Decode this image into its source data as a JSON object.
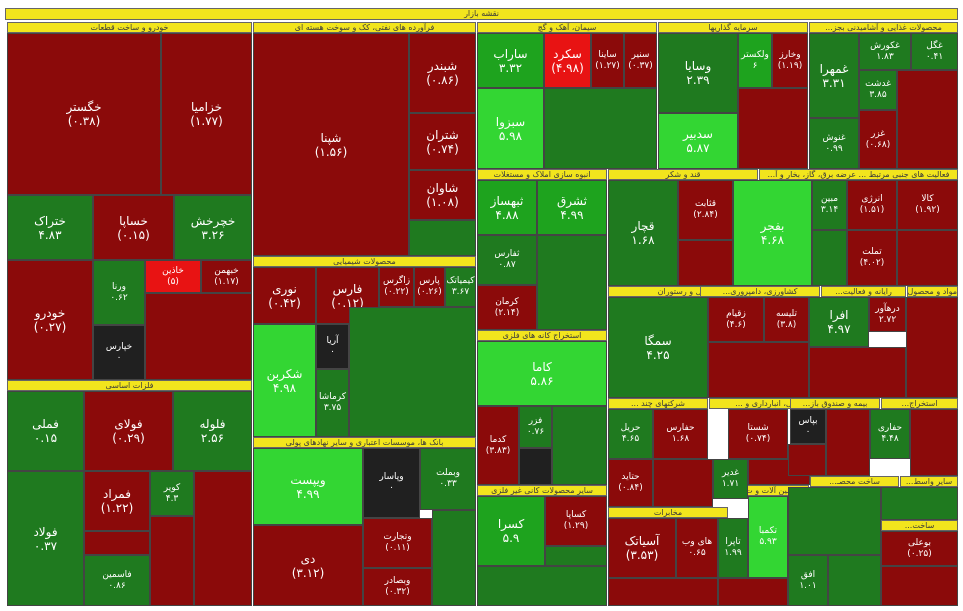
{
  "title": "نقشه بازار",
  "colors": {
    "dark_red": "#8b0a0a",
    "dark_green": "#1f7a1f",
    "green": "#1ea31e",
    "light_green": "#33d633",
    "red": "#e81313",
    "black": "#202020",
    "header": "#f2e51d"
  },
  "sectors": {
    "auto": "خودرو و ساخت قطعات",
    "refinery": "فرآورده های نفتی، کک و سوخت هسته ای",
    "cement": "سیمان، آهک و گچ",
    "invest": "سرمایه گذاریها",
    "food": "محصولات غذایی و آشامیدنی بجز...",
    "chemical": "محصولات شیمیایی",
    "realestate": "انبوه سازی املاک و مستغلات",
    "sugar": "قند و شکر",
    "support": "فعالیت های جنبی مرتبط ... عرضه برق، گاز، بخار و آ...",
    "metals": "فلزات اساسی",
    "mining": "استخراج کانه های فلزی",
    "hotel": "هتل و رستوران",
    "agri": "کشاورزی، دامپروری...",
    "computer": "رایانه و فعالیت...",
    "mavad": "مواد و محصول...",
    "banks": "بانک ها، موسسات اعتباری و سایر نهادهای پولی",
    "nonmetal": "سایر محصولات کانی غیر فلزی",
    "multi": "شرکتهای چند ...",
    "transport": "حمل و نقل، انبارداری و ...",
    "insurance": "بیمه و صندوق باز...",
    "mining2": "استخراج...",
    "telecom": "مخابرات",
    "machinery": "ماشین آلات و ت...",
    "other_mining": "سایر واسط...",
    "woodpaper": "ساخت محصـ...",
    "textile": "ساخت..."
  },
  "tiles": [
    {
      "name": "خگستر",
      "value": "(۰.۳۸)"
    },
    {
      "name": "خزامیا",
      "value": "(۱.۷۷)"
    },
    {
      "name": "ختراک",
      "value": "۴.۸۳"
    },
    {
      "name": "خساپا",
      "value": "(۰.۱۵)"
    },
    {
      "name": "خچرخش",
      "value": "۳.۲۶"
    },
    {
      "name": "خودرو",
      "value": "(۰.۲۷)"
    },
    {
      "name": "ورنا",
      "value": "۰.۶۲"
    },
    {
      "name": "خاذین",
      "value": "(۵)"
    },
    {
      "name": "خبهمن",
      "value": "(۱.۱۷)"
    },
    {
      "name": "خپارس",
      "value": "۰"
    },
    {
      "name": "شپنا",
      "value": "(۱.۵۶)"
    },
    {
      "name": "شبندر",
      "value": "(۰.۸۶)"
    },
    {
      "name": "شتران",
      "value": "(۰.۷۴)"
    },
    {
      "name": "شاوان",
      "value": "(۱.۰۸)"
    },
    {
      "name": "ساراب",
      "value": "۳.۳۲"
    },
    {
      "name": "سکرد",
      "value": "(۴.۹۸)"
    },
    {
      "name": "ساینا",
      "value": "(۱.۲۷)"
    },
    {
      "name": "سنیر",
      "value": "(۰.۳۷)"
    },
    {
      "name": "سبزوا",
      "value": "۵.۹۸"
    },
    {
      "name": "وسایا",
      "value": "۲.۳۹"
    },
    {
      "name": "وخارز",
      "value": "(۱.۱۹)"
    },
    {
      "name": "ولکستر",
      "value": "۶"
    },
    {
      "name": "سدبیر",
      "value": "۵.۸۷"
    },
    {
      "name": "غمهرا",
      "value": "۳.۳۱"
    },
    {
      "name": "غکورش",
      "value": "۱.۸۳"
    },
    {
      "name": "غگل",
      "value": "۰.۴۱"
    },
    {
      "name": "غنوش",
      "value": "۰.۹۹"
    },
    {
      "name": "غدشت",
      "value": "۳.۸۵"
    },
    {
      "name": "غزر",
      "value": "(۰.۶۸)"
    },
    {
      "name": "نوری",
      "value": "(۰.۴۲)"
    },
    {
      "name": "فارس",
      "value": "(۰.۱۲)"
    },
    {
      "name": "زاگرس",
      "value": "(۰.۲۲)"
    },
    {
      "name": "پارس",
      "value": "(۰.۲۶)"
    },
    {
      "name": "کیمیاتک",
      "value": "۳.۶۷"
    },
    {
      "name": "آریا",
      "value": "۰"
    },
    {
      "name": "شکربن",
      "value": "۴.۹۸"
    },
    {
      "name": "کرماشا",
      "value": "۳.۷۵"
    },
    {
      "name": "ثبهساز",
      "value": "۴.۸۸"
    },
    {
      "name": "ثشرق",
      "value": "۴.۹۹"
    },
    {
      "name": "ثفارس",
      "value": "۰.۸۷"
    },
    {
      "name": "قچار",
      "value": "۱.۶۸"
    },
    {
      "name": "قثابت",
      "value": "(۲.۸۴)"
    },
    {
      "name": "بفجر",
      "value": "۴.۶۸"
    },
    {
      "name": "مبین",
      "value": "۳.۱۴"
    },
    {
      "name": "انرژی",
      "value": "(۱.۵۱)"
    },
    {
      "name": "کالا",
      "value": "(۱.۹۲)"
    },
    {
      "name": "تملت",
      "value": "(۴.۰۲)"
    },
    {
      "name": "فملی",
      "value": "۰.۱۵"
    },
    {
      "name": "فولای",
      "value": "(۰.۲۹)"
    },
    {
      "name": "فلوله",
      "value": "۲.۵۶"
    },
    {
      "name": "فمراد",
      "value": "(۱.۲۲)"
    },
    {
      "name": "کویر",
      "value": "۴.۳"
    },
    {
      "name": "فولاد",
      "value": "۰.۳۷"
    },
    {
      "name": "فاسمین",
      "value": "۰.۸۶"
    },
    {
      "name": "ویپست",
      "value": "۴.۹۹"
    },
    {
      "name": "وپاسار",
      "value": "۰"
    },
    {
      "name": "وبملت",
      "value": "۰.۳۳"
    },
    {
      "name": "وتجارت",
      "value": "(۰.۱۱)"
    },
    {
      "name": "دی",
      "value": "(۳.۱۲)"
    },
    {
      "name": "وبصادر",
      "value": "(۰.۳۲)"
    },
    {
      "name": "کرمان",
      "value": "(۲.۱۴)"
    },
    {
      "name": "کاما",
      "value": "۵.۸۶"
    },
    {
      "name": "کدما",
      "value": "(۳.۸۳)"
    },
    {
      "name": "فزر",
      "value": "۰.۷۶"
    },
    {
      "name": "کسرا",
      "value": "۵.۹"
    },
    {
      "name": "کساپا",
      "value": "(۱.۲۹)"
    },
    {
      "name": "سمگا",
      "value": "۴.۲۵"
    },
    {
      "name": "زقیام",
      "value": "(۴.۶)"
    },
    {
      "name": "تلیسه",
      "value": "(۳.۸)"
    },
    {
      "name": "افرا",
      "value": "۴.۹۷"
    },
    {
      "name": "درهآور",
      "value": "۲.۷۲"
    },
    {
      "name": "حریل",
      "value": "۴.۶۵"
    },
    {
      "name": "حفارس",
      "value": "۱.۶۸"
    },
    {
      "name": "شستا",
      "value": "(۰.۷۴)"
    },
    {
      "name": "بپاس",
      "value": "۰"
    },
    {
      "name": "حفاری",
      "value": "۴.۴۸"
    },
    {
      "name": "آسیاتک",
      "value": "(۳.۵۳)"
    },
    {
      "name": "های وب",
      "value": "۰.۶۵"
    },
    {
      "name": "تاپرا",
      "value": "۱.۹۹"
    },
    {
      "name": "تکمبا",
      "value": "۵.۹۳"
    },
    {
      "name": "حتاید",
      "value": "(۰.۸۴)"
    },
    {
      "name": "غدیر",
      "value": "۱.۷۱"
    },
    {
      "name": "افق",
      "value": "۱.۰۱"
    },
    {
      "name": "بوعلی",
      "value": "(۰.۲۵)"
    }
  ]
}
